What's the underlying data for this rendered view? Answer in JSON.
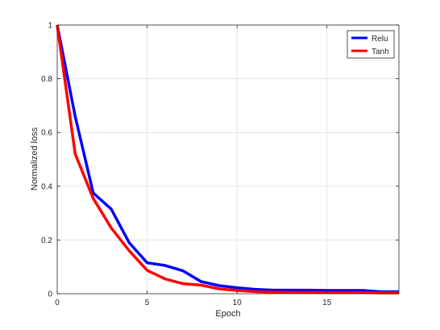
{
  "chart_data": {
    "type": "line",
    "title": "",
    "xlabel": "Epoch",
    "ylabel": "Normalized loss",
    "xlim": [
      0,
      19
    ],
    "ylim": [
      0,
      1
    ],
    "xticks": [
      0,
      5,
      10,
      15
    ],
    "yticks": [
      0,
      0.2,
      0.4,
      0.6,
      0.8,
      1
    ],
    "ytick_labels": [
      "0",
      "0.2",
      "0.4",
      "0.6",
      "0.8",
      "1"
    ],
    "grid": true,
    "legend_position": "top-right",
    "x": [
      0,
      1,
      2,
      3,
      4,
      5,
      6,
      7,
      8,
      9,
      10,
      11,
      12,
      13,
      14,
      15,
      16,
      17,
      18,
      19
    ],
    "series": [
      {
        "name": "Relu",
        "color": "#0000ff",
        "values": [
          1.0,
          0.66,
          0.375,
          0.315,
          0.19,
          0.115,
          0.105,
          0.085,
          0.045,
          0.03,
          0.022,
          0.016,
          0.013,
          0.013,
          0.013,
          0.012,
          0.012,
          0.012,
          0.007,
          0.007
        ]
      },
      {
        "name": "Tanh",
        "color": "#ff0000",
        "values": [
          1.0,
          0.52,
          0.355,
          0.245,
          0.16,
          0.087,
          0.055,
          0.037,
          0.032,
          0.018,
          0.012,
          0.008,
          0.006,
          0.005,
          0.005,
          0.004,
          0.004,
          0.004,
          0.003,
          0.003
        ]
      }
    ]
  }
}
